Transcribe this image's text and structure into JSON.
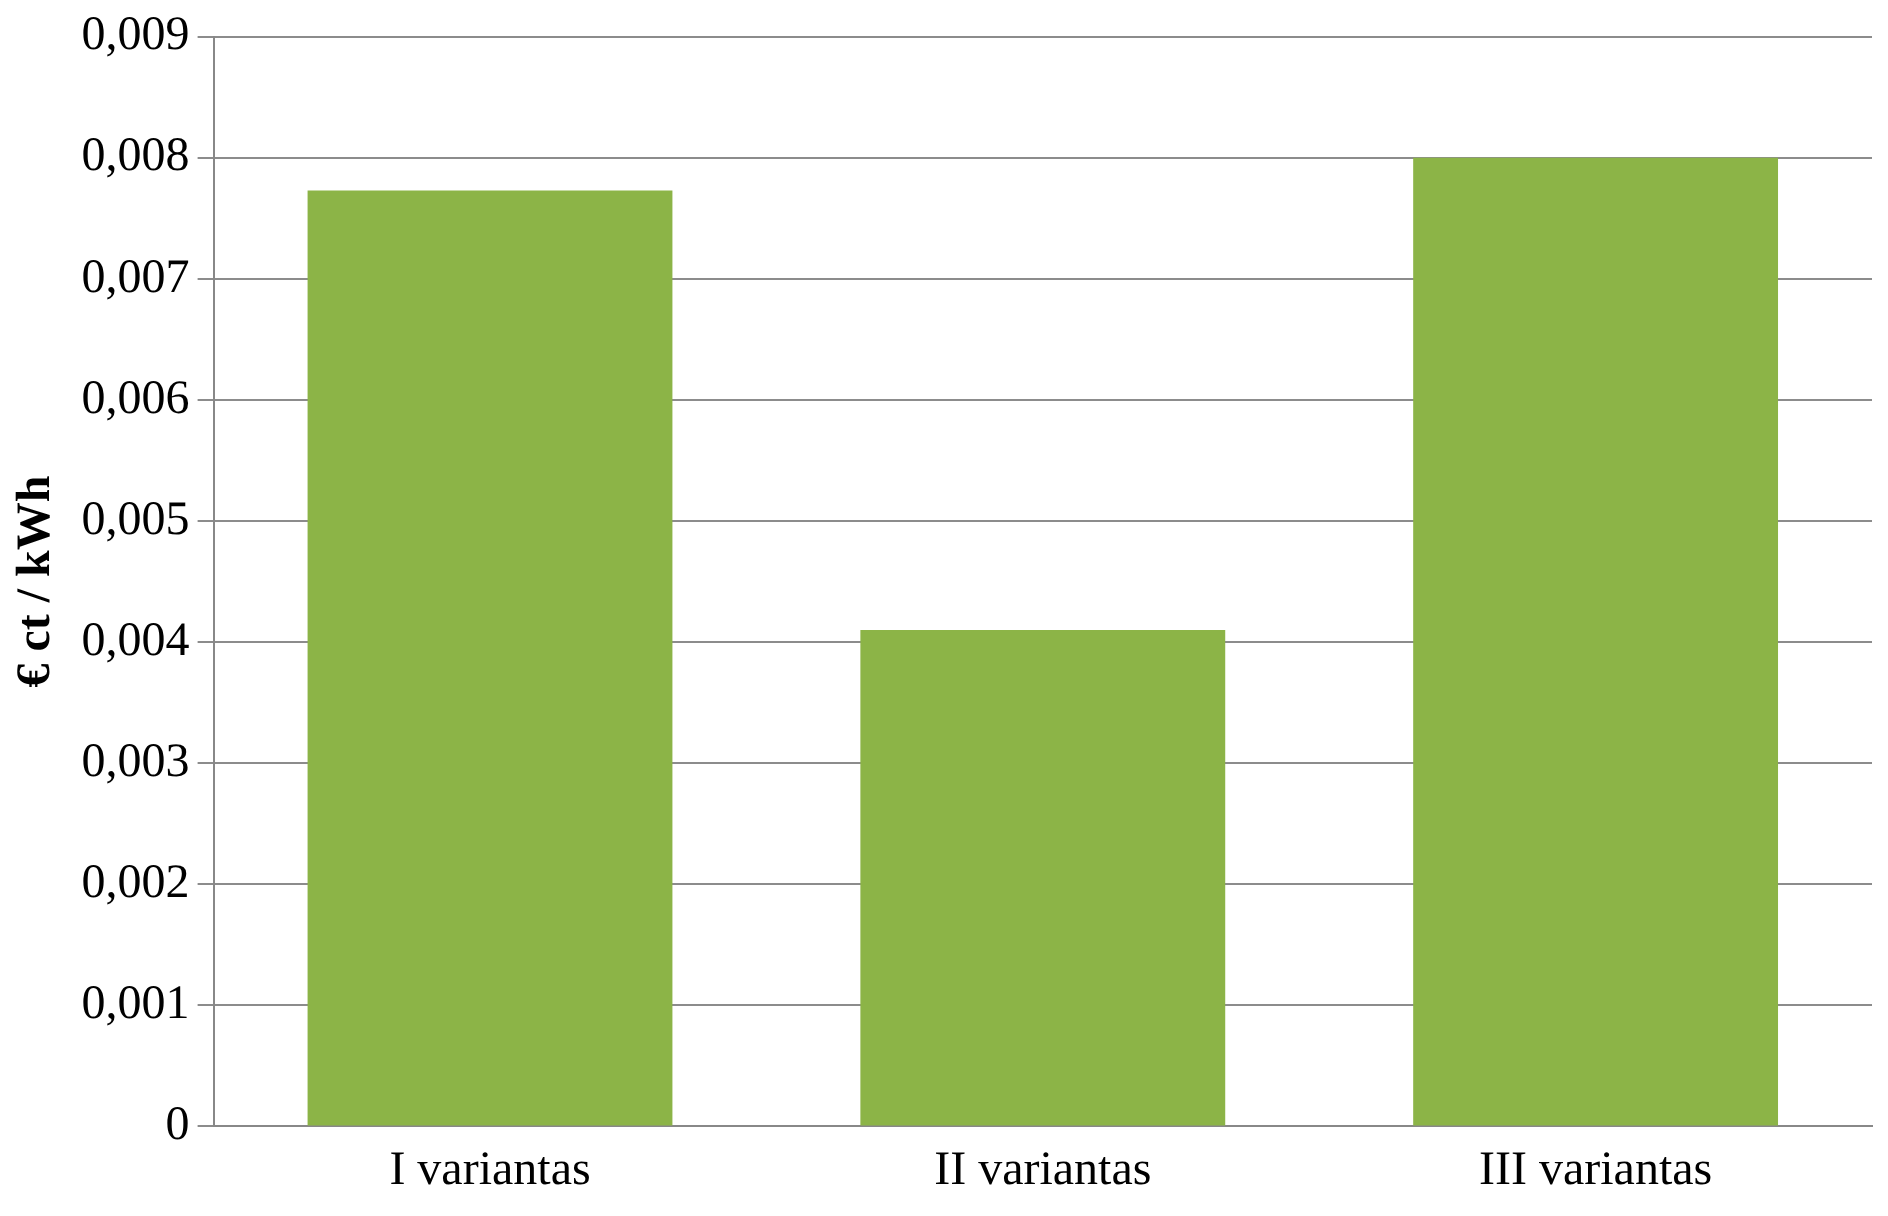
{
  "chart_data": {
    "type": "bar",
    "ylabel": "€ ct / kWh",
    "categories": [
      "I variantas",
      "II variantas",
      "III variantas"
    ],
    "values": [
      0.00773,
      0.0041,
      0.008
    ],
    "color": "#8cb447",
    "ylim": [
      0,
      0.009
    ],
    "yticks": [
      {
        "value": 0,
        "label": "0"
      },
      {
        "value": 0.001,
        "label": "0,001"
      },
      {
        "value": 0.002,
        "label": "0,002"
      },
      {
        "value": 0.003,
        "label": "0,003"
      },
      {
        "value": 0.004,
        "label": "0,004"
      },
      {
        "value": 0.005,
        "label": "0,005"
      },
      {
        "value": 0.006,
        "label": "0,006"
      },
      {
        "value": 0.007,
        "label": "0,007"
      },
      {
        "value": 0.008,
        "label": "0,008"
      },
      {
        "value": 0.009,
        "label": "0,009"
      }
    ],
    "grid": "y",
    "legend": false
  }
}
